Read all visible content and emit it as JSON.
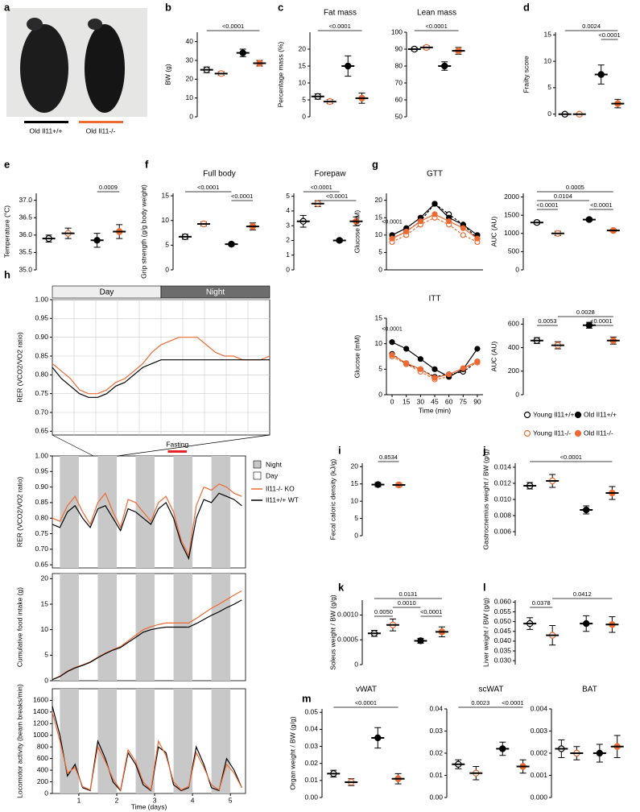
{
  "groups": [
    {
      "name": "Young Il11+/+",
      "color": "#000000",
      "filled": false,
      "dashed": true
    },
    {
      "name": "Young Il11-/-",
      "color": "#ee6a33",
      "filled": false,
      "dashed": true
    },
    {
      "name": "Old Il11+/+",
      "color": "#000000",
      "filled": true,
      "dashed": false
    },
    {
      "name": "Old Il11-/-",
      "color": "#ee6a33",
      "filled": true,
      "dashed": false
    }
  ],
  "chart_data": [
    {
      "type": "image",
      "label": "a",
      "captions": [
        "Old Il11+/+",
        "Old Il11-/-"
      ]
    },
    {
      "type": "dot",
      "label": "b",
      "ylabel": "BW (g)",
      "ylim": [
        0,
        45
      ],
      "yticks": [
        0,
        10,
        20,
        30,
        40
      ],
      "values": [
        25,
        23,
        34,
        28.5
      ],
      "errors": [
        1.5,
        1,
        2,
        1.5
      ],
      "comparisons": [
        "<0.0001"
      ]
    },
    {
      "type": "dot",
      "label": "c",
      "title": "Fat mass",
      "ylabel": "Percentage mass (%)",
      "ylim": [
        0,
        25
      ],
      "yticks": [
        0,
        5,
        10,
        15,
        20
      ],
      "values": [
        6,
        4.5,
        15,
        5.5
      ],
      "errors": [
        0.8,
        0.6,
        3,
        1.5
      ],
      "comparisons": [
        "<0.0001"
      ]
    },
    {
      "type": "dot",
      "title": "Lean mass",
      "ylim": [
        50,
        100
      ],
      "yticks": [
        50,
        60,
        70,
        80,
        90,
        100
      ],
      "values": [
        90,
        91,
        80,
        89
      ],
      "errors": [
        1,
        1,
        2.5,
        2
      ],
      "comparisons": [
        "<0.0001"
      ]
    },
    {
      "type": "dot",
      "label": "d",
      "ylabel": "Frailty score",
      "ylim": [
        -0.5,
        15.5
      ],
      "yticks": [
        0,
        5,
        10,
        15
      ],
      "values": [
        0,
        0,
        7.5,
        2
      ],
      "errors": [
        0,
        0,
        1.8,
        0.8
      ],
      "comparisons": [
        "0.0024",
        "<0.0001"
      ]
    },
    {
      "type": "dot",
      "label": "e",
      "ylabel": "Temperature (°C)",
      "ylim": [
        35,
        37.2
      ],
      "yticks": [
        {
          "value": 35,
          "label": "35.0"
        },
        35.5,
        {
          "value": 36,
          "label": "36.0"
        },
        36.5,
        {
          "value": 37,
          "label": "37.0"
        }
      ],
      "values": [
        35.9,
        36.05,
        35.85,
        36.1
      ],
      "errors": [
        0.1,
        0.15,
        0.2,
        0.2
      ],
      "comparisons": [
        "0.0009"
      ]
    },
    {
      "type": "dot",
      "label": "f",
      "title": "Full body",
      "ylabel": "Grip strength (g/g body weight)",
      "ylim": [
        0,
        15.5
      ],
      "yticks": [
        0,
        5,
        10,
        15
      ],
      "values": [
        6.7,
        9.3,
        5.2,
        8.8
      ],
      "errors": [
        0.5,
        0.4,
        0.3,
        0.7
      ],
      "comparisons": [
        "<0.0001",
        "<0.0001"
      ]
    },
    {
      "type": "dot",
      "title": "Forepaw",
      "ylim": [
        0,
        5.2
      ],
      "yticks": [
        0,
        1,
        2,
        3,
        4,
        5
      ],
      "values": [
        3.3,
        4.5,
        2.0,
        3.3
      ],
      "errors": [
        0.4,
        0.2,
        0.1,
        0.3
      ],
      "comparisons": [
        "<0.0001",
        "<0.0001"
      ]
    },
    {
      "type": "line",
      "label": "g",
      "title": "GTT",
      "ylabel": "Glucose (mM)",
      "ylim": [
        0,
        22
      ],
      "yticks": [
        0,
        5,
        10,
        15,
        20
      ],
      "xlim": [
        -6,
        96
      ],
      "x": [
        0,
        15,
        30,
        45,
        60,
        75,
        90
      ],
      "annotation": "<0.0001",
      "series": [
        {
          "values": [
            9,
            11,
            14,
            19,
            16,
            13,
            9
          ]
        },
        {
          "values": [
            8,
            10,
            13,
            15,
            13,
            10,
            8
          ]
        },
        {
          "values": [
            10,
            12,
            15,
            19,
            15,
            13,
            10
          ]
        },
        {
          "values": [
            9,
            11,
            14,
            16,
            14,
            12,
            9
          ]
        }
      ]
    },
    {
      "type": "dot",
      "ylabel": "AUC (AU)",
      "ylim": [
        0,
        2100
      ],
      "yticks": [
        0,
        500,
        1000,
        1500,
        2000
      ],
      "values": [
        1300,
        1000,
        1380,
        1080
      ],
      "errors": [
        40,
        60,
        40,
        30
      ],
      "comparisons": [
        "0.0005",
        "0.0104",
        "<0.0001",
        "<0.0001"
      ]
    },
    {
      "type": "line",
      "title": "ITT",
      "ylabel": "Glucose (mM)",
      "xlabel": "Time (min)",
      "ylim": [
        0,
        15
      ],
      "yticks": [
        0,
        5,
        10,
        15
      ],
      "xlim": [
        -6,
        96
      ],
      "x": [
        0,
        15,
        30,
        45,
        60,
        75,
        90
      ],
      "xticks": [
        0,
        15,
        30,
        45,
        60,
        75,
        90
      ],
      "annotation": "<0.0001",
      "series": [
        {
          "values": [
            8,
            6,
            5,
            3.5,
            4,
            4.5,
            6.5
          ]
        },
        {
          "values": [
            7.5,
            6,
            4.5,
            3,
            3.5,
            5,
            6.3
          ]
        },
        {
          "values": [
            10.3,
            9,
            7,
            5,
            3.5,
            5,
            9
          ]
        },
        {
          "values": [
            7.8,
            6.2,
            5,
            3.3,
            4,
            5.2,
            6.5
          ]
        }
      ]
    },
    {
      "type": "dot",
      "ylabel": "AUC (AU)",
      "ylim": [
        0,
        650
      ],
      "yticks": [
        0,
        200,
        400,
        600
      ],
      "values": [
        460,
        420,
        590,
        460
      ],
      "errors": [
        25,
        30,
        25,
        30
      ],
      "comparisons": [
        "0.0028",
        "0.0053",
        "<0.0001"
      ],
      "legend": true
    },
    {
      "type": "series",
      "label": "h",
      "ylabel": "RER (VCO2/VO2 ratio)",
      "bands": [
        "Day",
        "Night"
      ],
      "ylim": [
        0.64,
        1.0
      ],
      "yticks": [
        0.65,
        {
          "value": 0.7,
          "label": "0.70"
        },
        0.75,
        {
          "value": 0.8,
          "label": "0.80"
        },
        0.85,
        {
          "value": 0.9,
          "label": "0.90"
        },
        0.95,
        {
          "value": 1,
          "label": "1.00"
        }
      ],
      "series": [
        {
          "color": "#ee6a33",
          "values": [
            0.83,
            0.81,
            0.79,
            0.76,
            0.75,
            0.75,
            0.76,
            0.78,
            0.79,
            0.81,
            0.83,
            0.86,
            0.88,
            0.89,
            0.9,
            0.9,
            0.9,
            0.88,
            0.86,
            0.85,
            0.85,
            0.84,
            0.84,
            0.84,
            0.85
          ]
        },
        {
          "color": "#000000",
          "values": [
            0.82,
            0.79,
            0.77,
            0.75,
            0.74,
            0.74,
            0.75,
            0.77,
            0.78,
            0.8,
            0.82,
            0.83,
            0.84,
            0.84,
            0.84,
            0.84,
            0.84,
            0.84,
            0.84,
            0.84,
            0.84,
            0.84,
            0.84,
            0.84,
            0.84
          ]
        }
      ]
    },
    {
      "type": "series",
      "ylabel": "RER (VCO2/VO2 ratio)",
      "shading_legend": [
        "Night",
        "Day"
      ],
      "annotation": "Fasting",
      "xlim": [
        0.3,
        5.4
      ],
      "ylim": [
        0.64,
        1.0
      ],
      "yticks": [
        0.65,
        {
          "value": 0.7,
          "label": "0.70"
        },
        0.75,
        {
          "value": 0.8,
          "label": "0.80"
        },
        0.85,
        {
          "value": 0.9,
          "label": "0.90"
        },
        0.95,
        {
          "value": 1,
          "label": "1.00"
        }
      ],
      "x": [
        0.3,
        0.5,
        0.7,
        0.9,
        1.1,
        1.3,
        1.5,
        1.7,
        1.9,
        2.1,
        2.3,
        2.5,
        2.7,
        2.9,
        3.1,
        3.3,
        3.5,
        3.7,
        3.9,
        4.1,
        4.3,
        4.5,
        4.7,
        4.9,
        5.1,
        5.3
      ],
      "series": [
        {
          "name": "Il11-/- KO",
          "color": "#ee6a33",
          "values": [
            0.8,
            0.79,
            0.84,
            0.87,
            0.82,
            0.78,
            0.85,
            0.88,
            0.82,
            0.77,
            0.86,
            0.85,
            0.82,
            0.79,
            0.85,
            0.87,
            0.82,
            0.73,
            0.68,
            0.84,
            0.9,
            0.89,
            0.91,
            0.9,
            0.88,
            0.87
          ]
        },
        {
          "name": "Il11+/+ WT",
          "color": "#000000",
          "values": [
            0.78,
            0.77,
            0.82,
            0.84,
            0.8,
            0.77,
            0.83,
            0.84,
            0.8,
            0.76,
            0.83,
            0.82,
            0.8,
            0.78,
            0.83,
            0.85,
            0.8,
            0.72,
            0.67,
            0.8,
            0.86,
            0.85,
            0.88,
            0.87,
            0.86,
            0.84
          ]
        }
      ]
    },
    {
      "type": "series",
      "ylabel": "Cumulative food intake (g)",
      "xlim": [
        0.3,
        5.4
      ],
      "ylim": [
        0,
        21
      ],
      "yticks": [
        0,
        5,
        10,
        15,
        20
      ],
      "x": [
        0.3,
        0.5,
        0.7,
        0.9,
        1.1,
        1.3,
        1.5,
        1.7,
        1.9,
        2.1,
        2.3,
        2.5,
        2.7,
        2.9,
        3.1,
        3.3,
        3.5,
        3.7,
        3.9,
        4.1,
        4.3,
        4.5,
        4.7,
        4.9,
        5.1,
        5.3
      ],
      "series": [
        {
          "color": "#ee6a33",
          "values": [
            0.2,
            0.9,
            1.9,
            2.6,
            3.1,
            3.7,
            4.6,
            5.4,
            6.1,
            6.7,
            7.8,
            8.9,
            10,
            10.6,
            11,
            11.3,
            11.3,
            11.3,
            11.3,
            12.2,
            13.2,
            14.2,
            15,
            15.9,
            16.8,
            17.6
          ]
        },
        {
          "color": "#000000",
          "values": [
            0.2,
            0.8,
            1.8,
            2.5,
            3,
            3.6,
            4.5,
            5.3,
            6,
            6.5,
            7.5,
            8.5,
            9.5,
            10,
            10.3,
            10.5,
            10.5,
            10.5,
            10.5,
            11.2,
            12,
            12.8,
            13.5,
            14.3,
            15,
            15.8
          ]
        }
      ]
    },
    {
      "type": "series",
      "ylabel": "Locomotor activity (beam breaks/min)",
      "xlabel": "Time (days)",
      "xlim": [
        0.3,
        5.4
      ],
      "xticks": [
        1,
        2,
        3,
        4,
        5
      ],
      "ylim": [
        0,
        1800
      ],
      "yticks": [
        0,
        200,
        400,
        600,
        800,
        1000,
        1200,
        1400,
        1600
      ],
      "x": [
        0.3,
        0.5,
        0.7,
        0.9,
        1.1,
        1.3,
        1.5,
        1.7,
        1.9,
        2.1,
        2.3,
        2.5,
        2.7,
        2.9,
        3.1,
        3.3,
        3.5,
        3.7,
        3.9,
        4.1,
        4.3,
        4.5,
        4.7,
        4.9,
        5.1,
        5.3
      ],
      "series": [
        {
          "color": "#000000",
          "values": [
            1500,
            1000,
            300,
            500,
            100,
            50,
            900,
            600,
            200,
            50,
            700,
            500,
            150,
            50,
            800,
            700,
            150,
            50,
            100,
            800,
            500,
            100,
            50,
            600,
            400,
            100
          ]
        },
        {
          "color": "#ee6a33",
          "values": [
            1400,
            900,
            350,
            450,
            120,
            60,
            800,
            550,
            250,
            60,
            750,
            550,
            200,
            60,
            900,
            650,
            200,
            60,
            120,
            700,
            450,
            150,
            60,
            500,
            350,
            100
          ]
        }
      ]
    },
    {
      "type": "dot",
      "label": "i",
      "ylabel": "Fecal caloric density (kJ/g)",
      "ylim": [
        0,
        21
      ],
      "yticks": [
        0,
        5,
        10,
        15,
        20
      ],
      "values": [
        14.8,
        14.7
      ],
      "errors": [
        0.6,
        0.5
      ],
      "comparisons": [
        "0.8534"
      ]
    },
    {
      "type": "dot",
      "label": "j",
      "ylabel": "Gastrocnemius weight / BW (g/g)",
      "ylim": [
        0.0055,
        0.0145
      ],
      "yticks": [
        0.006,
        0.008,
        {
          "value": 0.01,
          "label": "0.010"
        },
        0.012,
        0.014
      ],
      "values": [
        0.0117,
        0.0123,
        0.0087,
        0.0108
      ],
      "errors": [
        0.0004,
        0.0008,
        0.0005,
        0.0008
      ],
      "comparisons": [
        "<0.0001"
      ]
    },
    {
      "type": "dot",
      "label": "k",
      "ylabel": "Soleus weight / BW (g/g)",
      "ylim": [
        0,
        0.0013
      ],
      "yticks": [
        0,
        0.0005,
        {
          "value": 0.001,
          "label": "0.0010"
        }
      ],
      "values": [
        0.00063,
        0.0008,
        0.00048,
        0.00066
      ],
      "errors": [
        6e-05,
        0.00012,
        5e-05,
        0.0001
      ],
      "comparisons": [
        "0.0131",
        "0.0010",
        "0.0050",
        "<0.0001"
      ]
    },
    {
      "type": "dot",
      "label": "l",
      "ylabel": "Liver weight / BW (g/g)",
      "ylim": [
        0.028,
        0.061
      ],
      "yticks": [
        {
          "value": 0.03,
          "label": "0.030"
        },
        0.035,
        {
          "value": 0.04,
          "label": "0.040"
        },
        0.045,
        {
          "value": 0.05,
          "label": "0.050"
        },
        0.055,
        {
          "value": 0.06,
          "label": "0.060"
        }
      ],
      "values": [
        0.049,
        0.043,
        0.049,
        0.0485
      ],
      "errors": [
        0.003,
        0.005,
        0.004,
        0.004
      ],
      "comparisons": [
        "0.0378",
        "0.0412"
      ]
    },
    {
      "type": "dot",
      "label": "m",
      "title": "vWAT",
      "ylabel": "Organ weight / BW (g/g)",
      "ylim": [
        0,
        0.052
      ],
      "yticks": [
        {
          "value": 0,
          "label": "0.00"
        },
        {
          "value": 0.01,
          "label": "0.01"
        },
        {
          "value": 0.02,
          "label": "0.02"
        },
        {
          "value": 0.03,
          "label": "0.03"
        },
        {
          "value": 0.04,
          "label": "0.04"
        },
        {
          "value": 0.05,
          "label": "0.05"
        }
      ],
      "values": [
        0.014,
        0.009,
        0.035,
        0.011
      ],
      "errors": [
        0.002,
        0.002,
        0.006,
        0.003
      ],
      "comparisons": [
        "<0.0001"
      ]
    },
    {
      "type": "dot",
      "title": "scWAT",
      "ylim": [
        0,
        0.04
      ],
      "yticks": [
        {
          "value": 0,
          "label": "0.00"
        },
        {
          "value": 0.01,
          "label": "0.01"
        },
        {
          "value": 0.02,
          "label": "0.02"
        },
        {
          "value": 0.03,
          "label": "0.03"
        },
        {
          "value": 0.04,
          "label": "0.04"
        }
      ],
      "values": [
        0.015,
        0.011,
        0.022,
        0.014
      ],
      "errors": [
        0.002,
        0.003,
        0.003,
        0.003
      ],
      "comparisons": [
        "0.0023",
        "<0.0001"
      ]
    },
    {
      "type": "dot",
      "title": "BAT",
      "ylim": [
        0,
        0.004
      ],
      "yticks": [
        {
          "value": 0,
          "label": "0.000"
        },
        {
          "value": 0.001,
          "label": "0.001"
        },
        {
          "value": 0.002,
          "label": "0.002"
        },
        {
          "value": 0.003,
          "label": "0.003"
        },
        {
          "value": 0.004,
          "label": "0.004"
        }
      ],
      "values": [
        0.0022,
        0.002,
        0.002,
        0.0023
      ],
      "errors": [
        0.0004,
        0.0003,
        0.0004,
        0.0005
      ],
      "comparisons": []
    }
  ]
}
